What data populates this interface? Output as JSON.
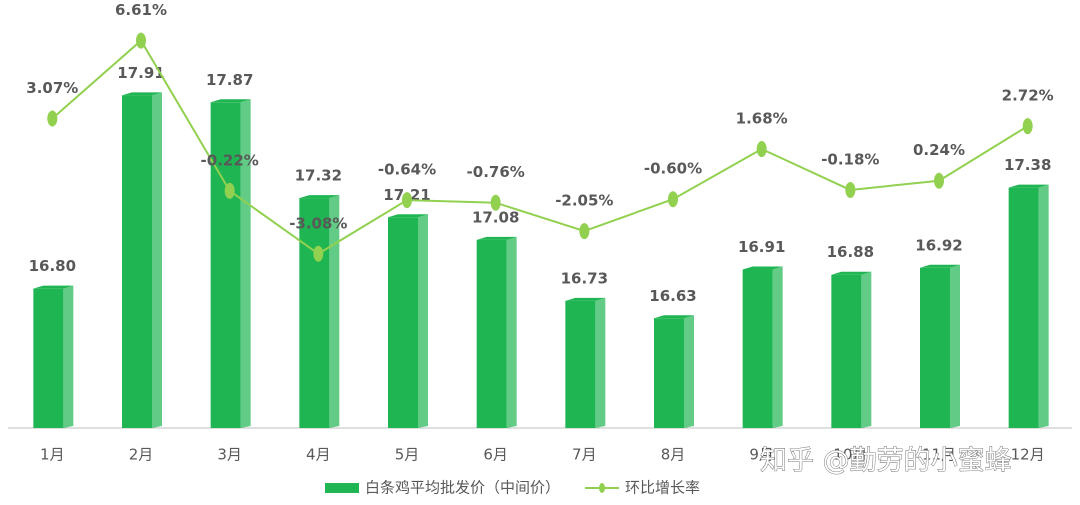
{
  "chart_data": {
    "type": "bar-line",
    "categories": [
      "1月",
      "2月",
      "3月",
      "4月",
      "5月",
      "6月",
      "7月",
      "8月",
      "9月",
      "10月",
      "11月",
      "12月"
    ],
    "series": [
      {
        "name": "白条鸡平均批发价（中间价）",
        "type": "bar",
        "color": "#1fb552",
        "values": [
          16.8,
          17.91,
          17.87,
          17.32,
          17.21,
          17.08,
          16.73,
          16.63,
          16.91,
          16.88,
          16.92,
          17.38
        ],
        "value_labels": [
          "16.80",
          "17.91",
          "17.87",
          "17.32",
          "17.21",
          "17.08",
          "16.73",
          "16.63",
          "16.91",
          "16.88",
          "16.92",
          "17.38"
        ]
      },
      {
        "name": "环比增长率",
        "type": "line",
        "axis": "y2",
        "color": "#92d050",
        "values": [
          3.07,
          6.61,
          -0.22,
          -3.08,
          -0.64,
          -0.76,
          -2.05,
          -0.6,
          1.68,
          -0.18,
          0.24,
          2.72
        ],
        "value_labels": [
          "3.07%",
          "6.61%",
          "-0.22%",
          "-3.08%",
          "-0.64%",
          "-0.76%",
          "-2.05%",
          "-0.60%",
          "1.68%",
          "-0.18%",
          "0.24%",
          "2.72%"
        ]
      }
    ],
    "ylim": [
      16,
      18.4
    ],
    "y2lim": [
      -11,
      8
    ],
    "legend": "bottom",
    "watermark": "知乎 @勤劳的小蜜蜂"
  }
}
